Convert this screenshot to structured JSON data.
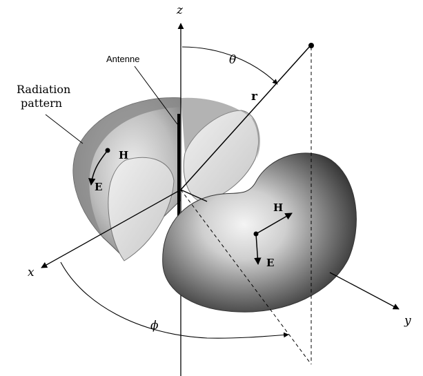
{
  "labels": {
    "z_axis": "z",
    "x_axis": "x",
    "y_axis": "y",
    "theta": "θ",
    "phi": "ϕ",
    "r_vector": "r",
    "antenna": "Antenne",
    "radiation_line1": "Radiation",
    "radiation_line2": "pattern",
    "h_left": "H",
    "e_left": "E",
    "h_right": "H",
    "e_right": "E"
  },
  "colors": {
    "ink": "#000000",
    "lobe_dark": "#3a3a3a",
    "lobe_mid": "#9a9a9a",
    "lobe_light": "#f2f2f2",
    "left_shell": "#b8b8b8",
    "left_inner": "#e4e4e4"
  }
}
